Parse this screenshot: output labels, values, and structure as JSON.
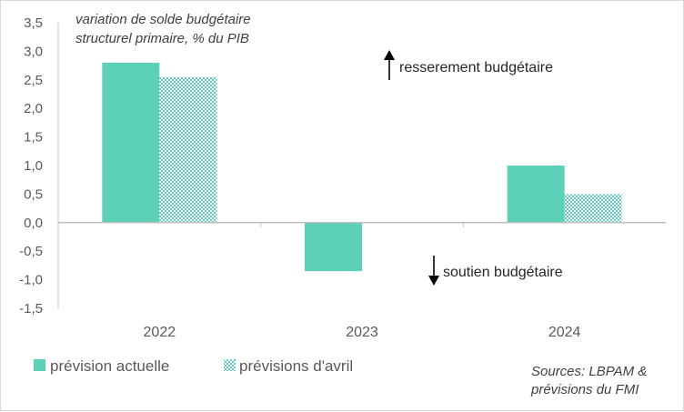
{
  "chart_data": {
    "type": "bar",
    "title": "variation de solde budgétaire structurel primaire, % du PIB",
    "title_lines": [
      "variation de solde budgétaire",
      "structurel primaire, % du PIB"
    ],
    "categories": [
      "2022",
      "2023",
      "2024"
    ],
    "series": [
      {
        "name": "prévision actuelle",
        "values": [
          2.8,
          -0.85,
          1.0
        ],
        "color": "#5cd1b7",
        "pattern": "solid"
      },
      {
        "name": "prévisions d'avril",
        "values": [
          2.55,
          0.0,
          0.5
        ],
        "color": "#5cd1b7",
        "pattern": "dotted-grid"
      }
    ],
    "ylim": [
      -1.5,
      3.5
    ],
    "yticks": [
      3.5,
      3.0,
      2.5,
      2.0,
      1.5,
      1.0,
      0.5,
      0.0,
      -0.5,
      -1.0,
      -1.5
    ],
    "ytick_labels": [
      "3,5",
      "3,0",
      "2,5",
      "2,0",
      "1,5",
      "1,0",
      "0,5",
      "0,0",
      "-0,5",
      "-1,0",
      "-1,5"
    ],
    "annotations": {
      "up": "resserement budgétaire",
      "down": "soutien budgétaire"
    },
    "source_lines": [
      "Sources: LBPAM &",
      "prévisions du  FMI"
    ],
    "legend_position": "bottom-left",
    "grid": false
  }
}
